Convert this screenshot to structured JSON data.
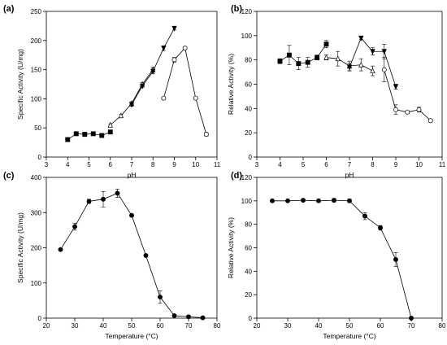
{
  "chart_data": [
    {
      "panel_label": "(a)",
      "type": "line",
      "xlabel": "pH",
      "ylabel": "Specific Activity (U/mg)",
      "xlim": [
        3,
        11
      ],
      "ylim": [
        0,
        250
      ],
      "xticks": [
        3,
        4,
        5,
        6,
        7,
        8,
        9,
        10,
        11
      ],
      "yticks": [
        0,
        50,
        100,
        150,
        200,
        250
      ],
      "grid": false,
      "series": [
        {
          "marker": "square",
          "fill": "#000000",
          "x": [
            4.0,
            4.4,
            4.8,
            5.2,
            5.6,
            6.0
          ],
          "y": [
            30,
            40,
            39,
            40,
            37,
            43
          ],
          "err": [
            2,
            2,
            2,
            2,
            2,
            2
          ]
        },
        {
          "marker": "triangle-up",
          "fill": "#ffffff",
          "x": [
            6.0,
            6.5,
            7.0,
            7.5,
            8.0
          ],
          "y": [
            55,
            71,
            92,
            125,
            150
          ],
          "err": [
            2,
            2,
            3,
            3,
            4
          ]
        },
        {
          "marker": "triangle-down",
          "fill": "#000000",
          "x": [
            7.0,
            7.5,
            8.0,
            8.5,
            9.0
          ],
          "y": [
            90,
            122,
            147,
            187,
            221
          ],
          "err": [
            3,
            3,
            4,
            4,
            3
          ]
        },
        {
          "marker": "circle",
          "fill": "#ffffff",
          "x": [
            8.5,
            9.0,
            9.5,
            10.0,
            10.5
          ],
          "y": [
            101,
            167,
            187,
            101,
            39
          ],
          "err": [
            2,
            4,
            2,
            2,
            3
          ]
        }
      ]
    },
    {
      "panel_label": "(b)",
      "type": "line",
      "xlabel": "pH",
      "ylabel": "Relative Activity (%)",
      "xlim": [
        3,
        11
      ],
      "ylim": [
        0,
        120
      ],
      "xticks": [
        3,
        4,
        5,
        6,
        7,
        8,
        9,
        10,
        11
      ],
      "yticks": [
        0,
        20,
        40,
        60,
        80,
        100,
        120
      ],
      "grid": false,
      "series": [
        {
          "marker": "square",
          "fill": "#000000",
          "x": [
            4.0,
            4.4,
            4.8,
            5.2,
            5.6,
            6.0
          ],
          "y": [
            79,
            84,
            77,
            78,
            82,
            93
          ],
          "err": [
            2,
            8,
            5,
            4,
            2,
            3
          ]
        },
        {
          "marker": "triangle-up",
          "fill": "#ffffff",
          "x": [
            6.0,
            6.5,
            7.0,
            7.5,
            8.0
          ],
          "y": [
            82,
            81,
            75,
            76,
            71
          ],
          "err": [
            2,
            6,
            4,
            5,
            4
          ]
        },
        {
          "marker": "triangle-down",
          "fill": "#000000",
          "x": [
            7.0,
            7.5,
            8.0,
            8.5,
            9.0
          ],
          "y": [
            74,
            98,
            87,
            87,
            58
          ],
          "err": [
            3,
            1,
            3,
            6,
            2
          ]
        },
        {
          "marker": "circle",
          "fill": "#ffffff",
          "x": [
            8.5,
            9.0,
            9.5,
            10.0,
            10.5
          ],
          "y": [
            72,
            39,
            37,
            39,
            30
          ],
          "err": [
            10,
            4,
            1,
            2,
            1
          ]
        }
      ]
    },
    {
      "panel_label": "(c)",
      "type": "line",
      "xlabel": "Temperature (°C)",
      "ylabel": "Specific Activity (U/mg)",
      "xlim": [
        20,
        80
      ],
      "ylim": [
        0,
        400
      ],
      "xticks": [
        20,
        30,
        40,
        50,
        60,
        70,
        80
      ],
      "yticks": [
        0,
        100,
        200,
        300,
        400
      ],
      "grid": false,
      "series": [
        {
          "marker": "circle",
          "fill": "#000000",
          "x": [
            25,
            30,
            35,
            40,
            45,
            50,
            55,
            60,
            65,
            70,
            75
          ],
          "y": [
            195,
            260,
            332,
            338,
            355,
            292,
            178,
            60,
            7,
            4,
            1
          ],
          "err": [
            2,
            10,
            6,
            22,
            12,
            3,
            3,
            18,
            2,
            1,
            1
          ]
        }
      ]
    },
    {
      "panel_label": "(d)",
      "type": "line",
      "xlabel": "Temperature (°C)",
      "ylabel": "Relative Activity (%)",
      "xlim": [
        20,
        80
      ],
      "ylim": [
        0,
        120
      ],
      "xticks": [
        20,
        30,
        40,
        50,
        60,
        70,
        80
      ],
      "yticks": [
        0,
        20,
        40,
        60,
        80,
        100,
        120
      ],
      "grid": false,
      "series": [
        {
          "marker": "circle",
          "fill": "#000000",
          "x": [
            25,
            30,
            35,
            40,
            45,
            50,
            55,
            60,
            65,
            70
          ],
          "y": [
            100,
            100,
            100.5,
            100,
            100.5,
            100,
            87,
            77,
            50,
            0
          ],
          "err": [
            1,
            0.5,
            1,
            1,
            1.5,
            1.5,
            3,
            2,
            6,
            0
          ]
        }
      ]
    }
  ]
}
